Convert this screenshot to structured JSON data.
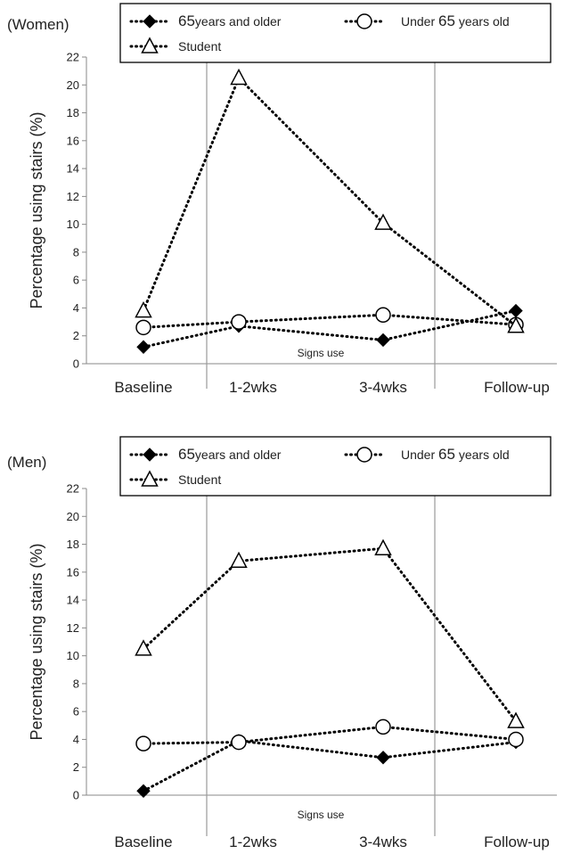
{
  "chart_data": [
    {
      "type": "line",
      "panel_label": "(Women)",
      "ylabel": "Percentage using stairs (%)",
      "ylim": [
        0,
        22
      ],
      "yticks": [
        "0",
        "2",
        "4",
        "6",
        "8",
        "10",
        "12",
        "14",
        "16",
        "18",
        "20",
        "22"
      ],
      "x_subtitle": "Signs use",
      "categories": [
        "Baseline",
        "1-2wks",
        "3-4wks",
        "Follow-up"
      ],
      "grid": false,
      "legend_position": "top",
      "legend": [
        {
          "num": "65",
          "text": "years and older"
        },
        {
          "pre": "Under ",
          "num": "65",
          "text": " years old"
        },
        {
          "text": "Student"
        }
      ],
      "series": [
        {
          "marker": "diamond",
          "values": [
            1.2,
            2.7,
            1.7,
            3.8
          ]
        },
        {
          "marker": "circle",
          "values": [
            2.6,
            3.0,
            3.5,
            2.8
          ]
        },
        {
          "marker": "triangle",
          "values": [
            3.8,
            20.5,
            10.1,
            2.7
          ]
        }
      ]
    },
    {
      "type": "line",
      "panel_label": "(Men)",
      "ylabel": "Percentage using stairs (%)",
      "ylim": [
        0,
        22
      ],
      "yticks": [
        "0",
        "2",
        "4",
        "6",
        "8",
        "10",
        "12",
        "14",
        "16",
        "18",
        "20",
        "22"
      ],
      "x_subtitle": "Signs use",
      "categories": [
        "Baseline",
        "1-2wks",
        "3-4wks",
        "Follow-up"
      ],
      "grid": false,
      "legend_position": "top",
      "legend": [
        {
          "num": "65",
          "text": "years and older"
        },
        {
          "pre": "Under ",
          "num": "65",
          "text": " years old"
        },
        {
          "text": "Student"
        }
      ],
      "series": [
        {
          "marker": "diamond",
          "values": [
            0.3,
            3.9,
            2.7,
            3.8
          ]
        },
        {
          "marker": "circle",
          "values": [
            3.7,
            3.8,
            4.9,
            4.0
          ]
        },
        {
          "marker": "triangle",
          "values": [
            10.5,
            16.8,
            17.7,
            5.3
          ]
        }
      ]
    }
  ]
}
